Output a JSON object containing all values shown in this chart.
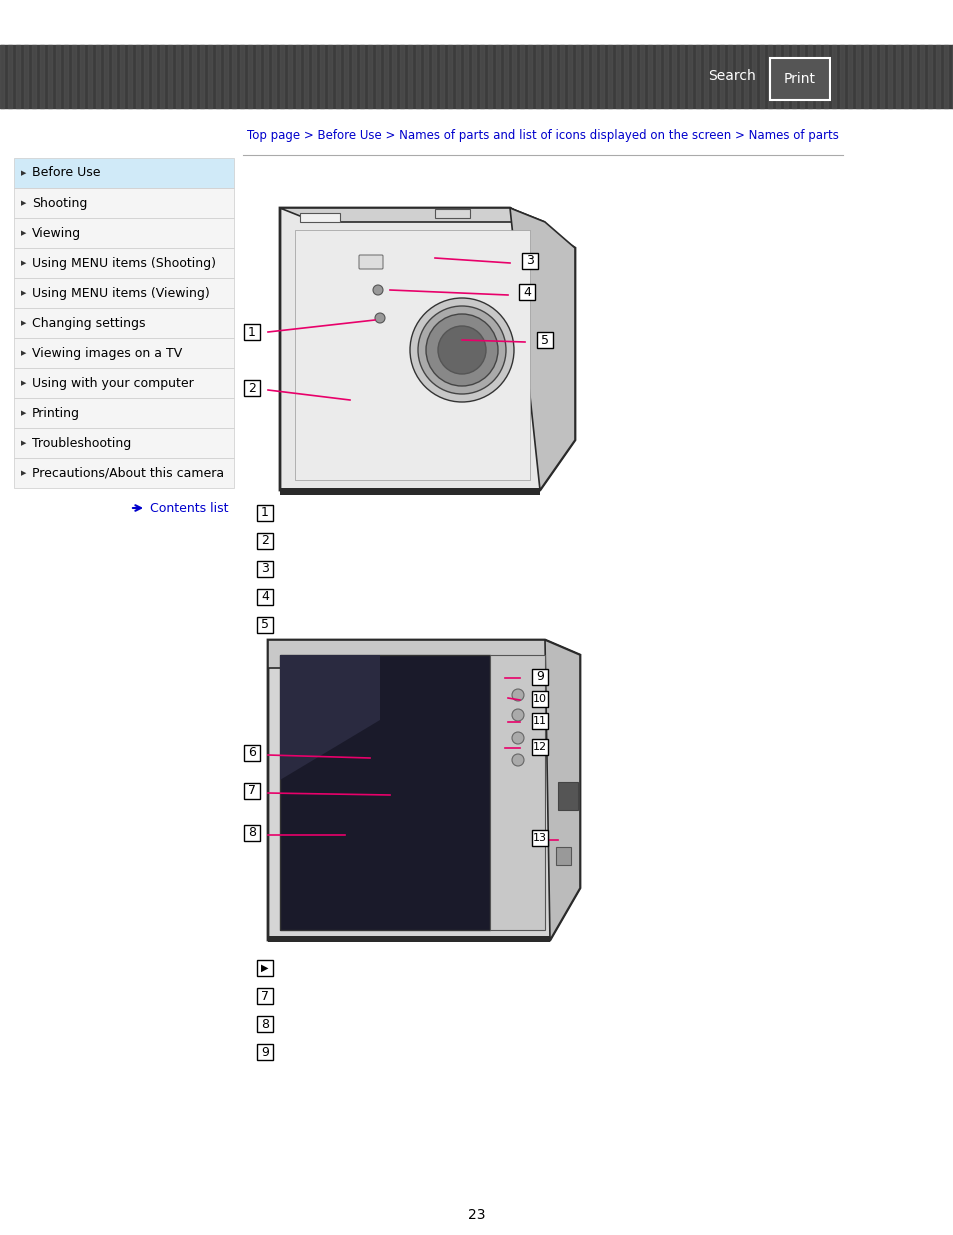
{
  "bg_color": "#ffffff",
  "header_bar_color": "#3a3a3a",
  "header_text_search": "Search",
  "header_text_print": "Print",
  "breadcrumb": "Top page > Before Use > Names of parts and list of icons displayed on the screen > Names of parts",
  "breadcrumb_color": "#0000cc",
  "sidebar_items": [
    "Before Use",
    "Shooting",
    "Viewing",
    "Using MENU items (Shooting)",
    "Using MENU items (Viewing)",
    "Changing settings",
    "Viewing images on a TV",
    "Using with your computer",
    "Printing",
    "Troubleshooting",
    "Precautions/About this camera"
  ],
  "sidebar_active": 0,
  "sidebar_active_color": "#d0eaf8",
  "sidebar_inactive_color": "#f0f0f0",
  "sidebar_border_color": "#cccccc",
  "sidebar_text_color": "#000000",
  "contents_list_text": "Contents list",
  "contents_list_color": "#0000cc",
  "page_number": "23",
  "numbered_boxes_top": [
    "1",
    "2",
    "3",
    "4",
    "5"
  ],
  "numbered_boxes_bottom": [
    "6",
    "7",
    "8",
    "9"
  ]
}
